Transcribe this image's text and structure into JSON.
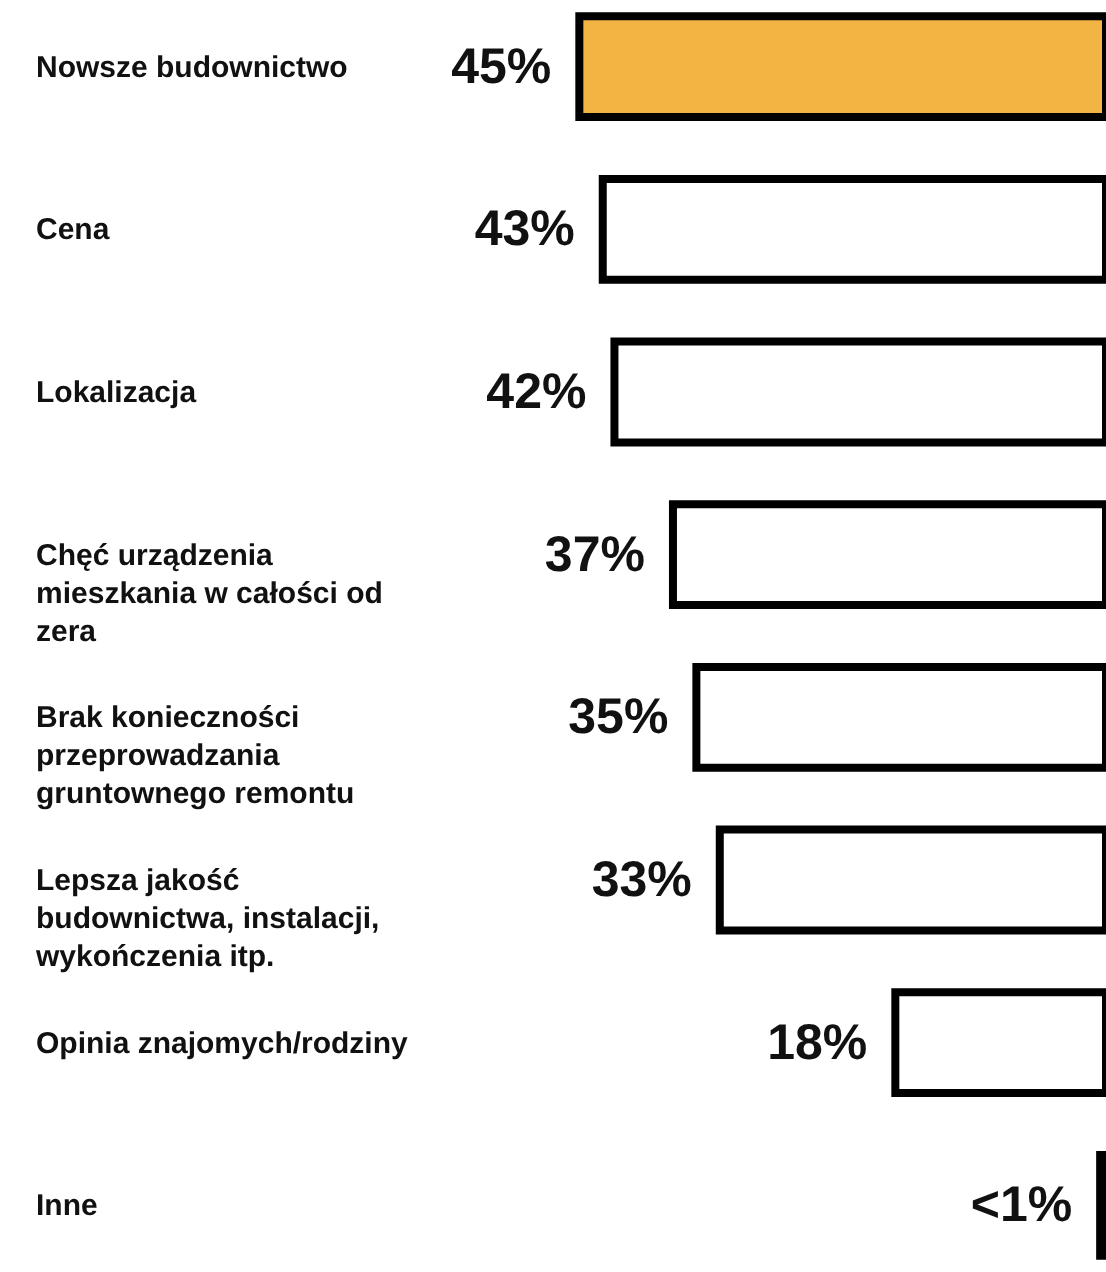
{
  "chart_data": {
    "type": "bar",
    "orientation": "horizontal",
    "categories": [
      "Nowsze budownictwo",
      "Cena",
      "Lokalizacja",
      "Chęć urządzenia mieszkania w całości od zera",
      "Brak konieczności przeprowadzania gruntownego remontu",
      "Lepsza jakość budownictwa, instalacji, wykończenia itp.",
      "Opinia znajomych/rodziny",
      "Inne"
    ],
    "values": [
      45,
      43,
      42,
      37,
      35,
      33,
      18,
      0.5
    ],
    "colors": [
      "#f2b544",
      "#ffffff",
      "#ffffff",
      "#ffffff",
      "#ffffff",
      "#ffffff",
      "#ffffff",
      "#ffffff"
    ],
    "value_labels": [
      "45%",
      "43%",
      "42%",
      "37%",
      "35%",
      "33%",
      "18%",
      "<1%"
    ],
    "xlim": [
      94.5,
      0
    ],
    "tick_labels": false
  }
}
